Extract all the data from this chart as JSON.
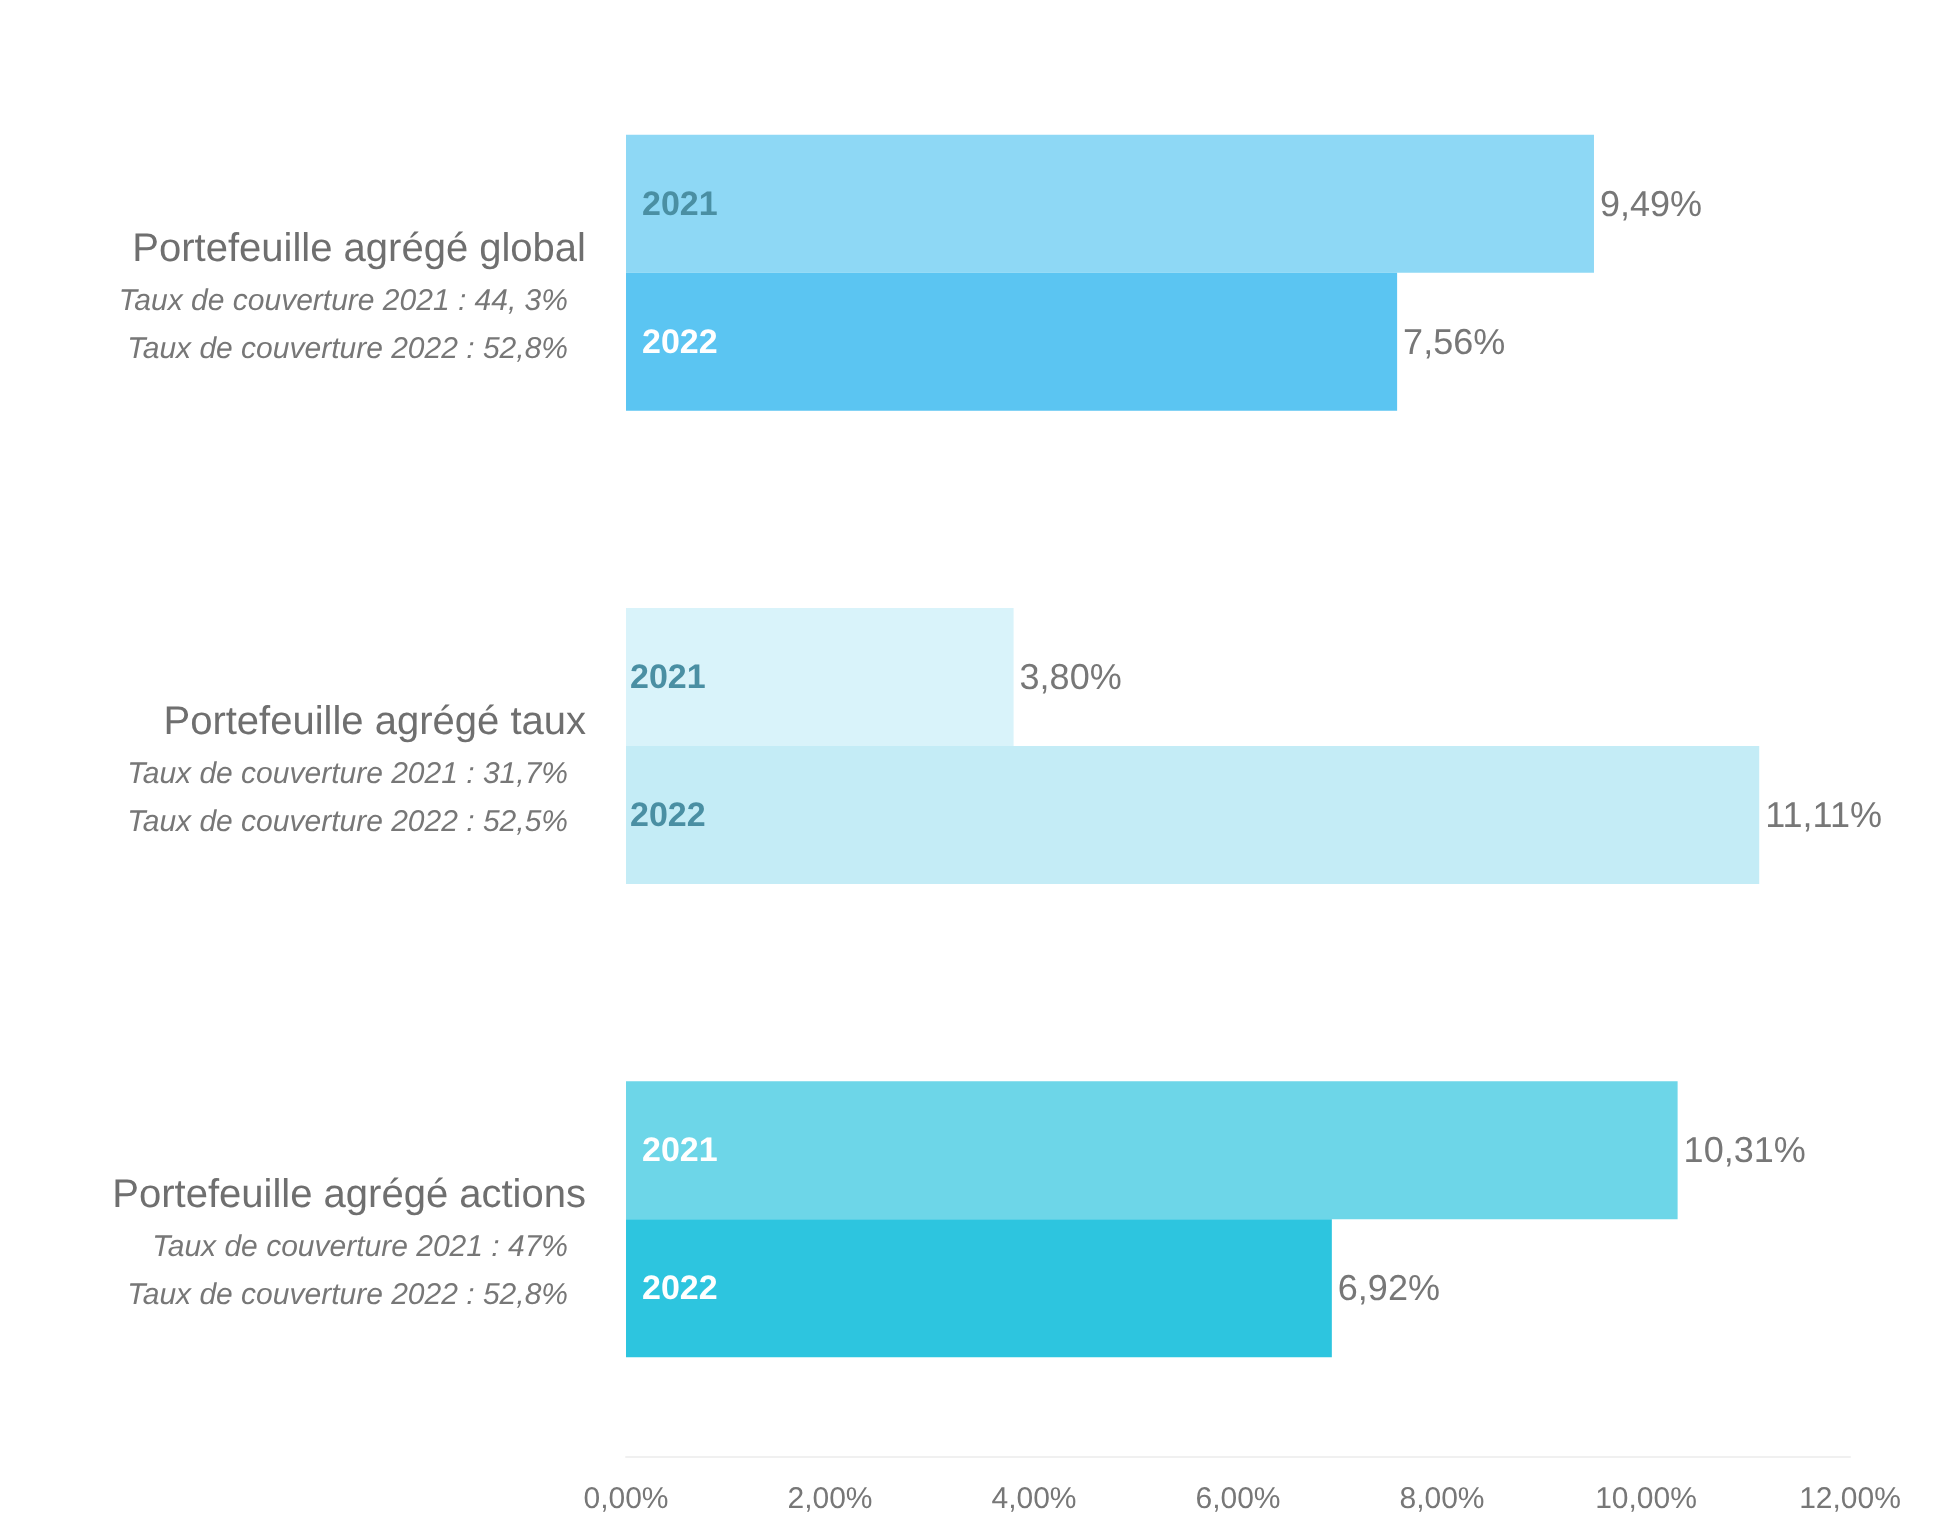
{
  "chart_data": {
    "type": "bar",
    "orientation": "horizontal",
    "categories": [
      "Portefeuille agrégé global",
      "Portefeuille agrégé taux",
      "Portefeuille agrégé actions"
    ],
    "series": [
      {
        "name": "2021",
        "colors": [
          "#8ed8f5",
          "#d9f3fa",
          "#6dd6e8"
        ],
        "values": [
          9.49,
          3.8,
          10.31
        ],
        "value_labels": [
          "9,49%",
          "3,80%",
          "10,31%"
        ]
      },
      {
        "name": "2022",
        "colors": [
          "#5bc5f2",
          "#c4ecf6",
          "#2dc5df"
        ],
        "values": [
          7.56,
          11.11,
          6.92
        ],
        "value_labels": [
          "7,56%",
          "11,11%",
          "6,92%"
        ]
      }
    ],
    "xlim": [
      0,
      12
    ],
    "xticks": [
      {
        "value": 0,
        "label": "0,00%"
      },
      {
        "value": 2,
        "label": "2,00%"
      },
      {
        "value": 4,
        "label": "4,00%"
      },
      {
        "value": 6,
        "label": "6,00%"
      },
      {
        "value": 8,
        "label": "8,00%"
      },
      {
        "value": 10,
        "label": "10,00%"
      },
      {
        "value": 12,
        "label": "12,00%"
      }
    ],
    "annotations": [
      "Taux de couverture 2021 : 44, 3%",
      "Taux de couverture 2022 : 52,8%",
      "Taux de couverture 2021 : 31,7%",
      "Taux de couverture 2022 : 52,5%",
      "Taux de couverture 2021 : 47%",
      "Taux de couverture 2022 : 52,8%"
    ],
    "grid": false,
    "legend": false
  }
}
